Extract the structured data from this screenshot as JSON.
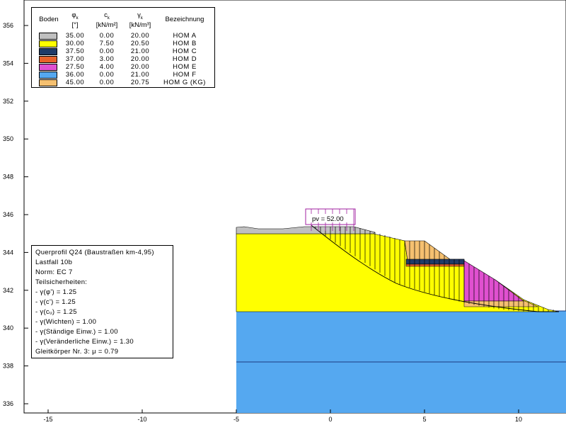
{
  "legend": {
    "headers": {
      "boden": "Boden",
      "phi_symbol": "φ",
      "phi_sub": "k",
      "phi_unit": "[°]",
      "c_symbol": "c",
      "c_sub": "k",
      "c_unit": "[kN/m²]",
      "gamma_symbol": "γ",
      "gamma_sub": "k",
      "gamma_unit": "[kN/m³]",
      "bezeichnung": "Bezeichnung"
    },
    "rows": [
      {
        "color": "#c0c0c0",
        "phi": "35.00",
        "c": "0.00",
        "gamma": "20.00",
        "name": "HOM A"
      },
      {
        "color": "#ffff00",
        "phi": "30.00",
        "c": "7.50",
        "gamma": "20.50",
        "name": "HOM B"
      },
      {
        "color": "#1f3b68",
        "phi": "37.50",
        "c": "0.00",
        "gamma": "21.00",
        "name": "HOM C"
      },
      {
        "color": "#e8622a",
        "phi": "37.00",
        "c": "3.00",
        "gamma": "20.00",
        "name": "HOM D"
      },
      {
        "color": "#e050d0",
        "phi": "27.50",
        "c": "4.00",
        "gamma": "20.00",
        "name": "HOM E"
      },
      {
        "color": "#55a8f0",
        "phi": "36.00",
        "c": "0.00",
        "gamma": "21.00",
        "name": "HOM F"
      },
      {
        "color": "#f5c070",
        "phi": "45.00",
        "c": "0.00",
        "gamma": "20.75",
        "name": "HOM G (KG)"
      }
    ]
  },
  "info": {
    "lines": [
      "Querprofil Q24 (Baustraßen km-4,95)",
      "Lastfall 10b",
      "Norm: EC 7",
      "Teilsicherheiten:",
      " - γ(φ') = 1.25",
      " - γ(c') = 1.25",
      " - γ(cᵤ) = 1.25",
      " - γ(Wichten) = 1.00",
      " - γ(Ständige Einw.) = 1.00",
      " - γ(Veränderliche Einw.) = 1.30",
      "Gleitkörper Nr. 3: μ = 0.79"
    ]
  },
  "load": {
    "label": "pv = 52.00"
  },
  "axes": {
    "x_ticks": [
      "-15",
      "-10",
      "-5",
      "0",
      "5",
      "10"
    ],
    "y_ticks": [
      "356",
      "354",
      "352",
      "350",
      "348",
      "346",
      "344",
      "342",
      "340",
      "338",
      "336"
    ],
    "x_values": [
      -15,
      -10,
      -5,
      0,
      5,
      10
    ],
    "y_values": [
      356,
      354,
      352,
      350,
      348,
      346,
      344,
      342,
      340,
      338,
      336
    ]
  },
  "colors": {
    "hom_a": "#c0c0c0",
    "hom_b": "#ffff00",
    "hom_c": "#1f3b68",
    "hom_d": "#e8622a",
    "hom_e": "#e050d0",
    "hom_f": "#55a8f0",
    "hom_g": "#f5c070",
    "load": "#a020a0"
  }
}
